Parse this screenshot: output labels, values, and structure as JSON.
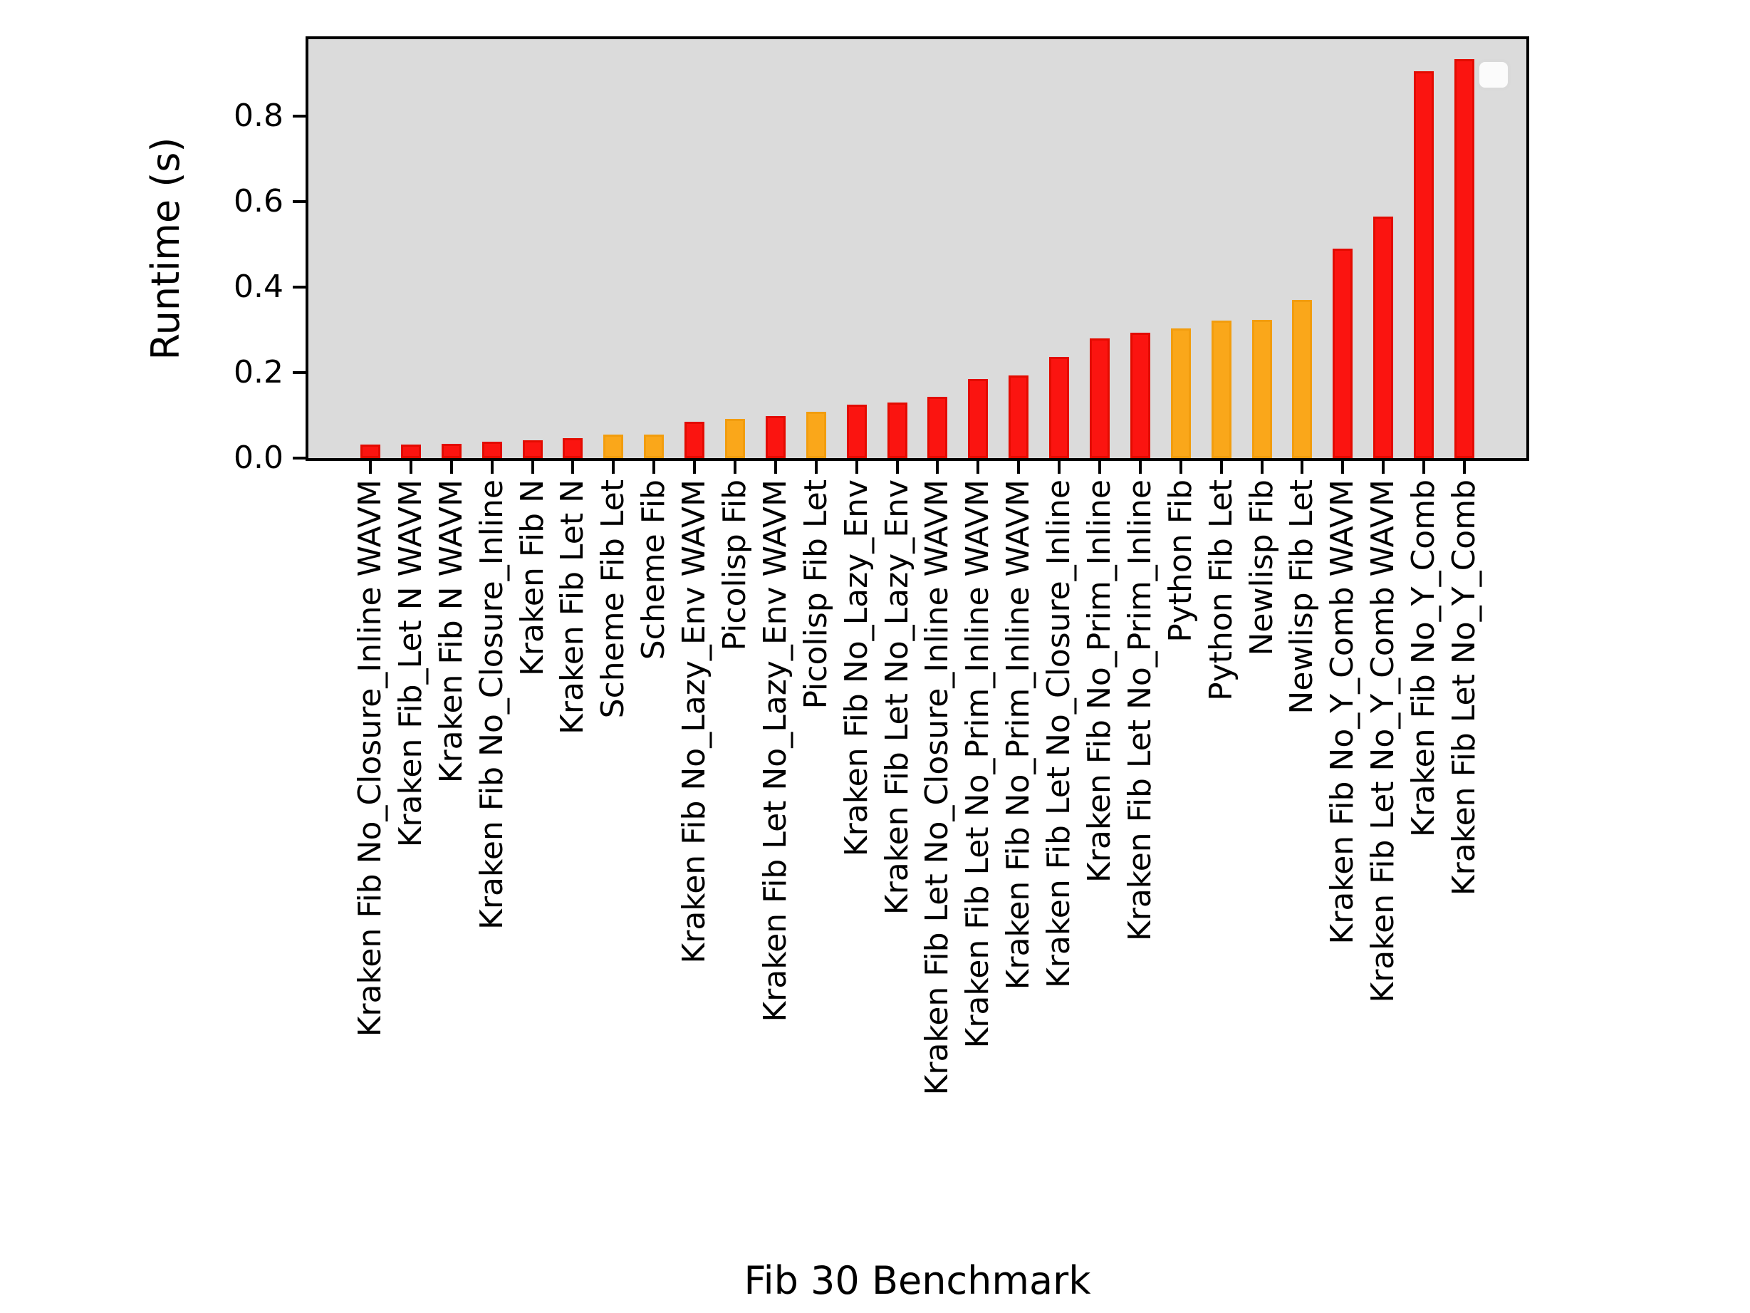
{
  "figure": {
    "xlabel": "Fib 30 Benchmark",
    "ylabel": "Runtime (s)"
  },
  "chart_data": {
    "type": "bar",
    "title": "",
    "xlabel": "Fib 30 Benchmark",
    "ylabel": "Runtime (s)",
    "ylim": [
      0,
      0.98
    ],
    "yticks": [
      0.0,
      0.2,
      0.4,
      0.6,
      0.8
    ],
    "ytick_labels": [
      "0.0",
      "0.2",
      "0.4",
      "0.6",
      "0.8"
    ],
    "grid": false,
    "legend": {
      "visible": true,
      "entries": [],
      "position": "upper right"
    },
    "plot_background": "#dbdbdb",
    "palette": {
      "red_fill": "#fb1410",
      "red_edge": "#e30b00",
      "orange_fill": "#faa71a",
      "orange_edge": "#f29d0e"
    },
    "color_meaning": {
      "red": "Kraken variants",
      "orange": "Other languages (Scheme, Picolisp, Python, Newlisp)"
    },
    "categories": [
      "Kraken Fib No_Closure_Inline WAVM",
      "Kraken Fib_Let N WAVM",
      "Kraken Fib N WAVM",
      "Kraken Fib No_Closure_Inline",
      "Kraken Fib N",
      "Kraken Fib Let N",
      "Scheme Fib Let",
      "Scheme Fib",
      "Kraken Fib No_Lazy_Env WAVM",
      "Picolisp Fib",
      "Kraken Fib Let No_Lazy_Env WAVM",
      "Picolisp Fib Let",
      "Kraken Fib No_Lazy_Env",
      "Kraken Fib Let No_Lazy_Env",
      "Kraken Fib Let No_Closure_Inline WAVM",
      "Kraken Fib Let No_Prim_Inline WAVM",
      "Kraken Fib No_Prim_Inline WAVM",
      "Kraken Fib Let No_Closure_Inline",
      "Kraken Fib No_Prim_Inline",
      "Kraken Fib Let No_Prim_Inline",
      "Python Fib",
      "Python Fib Let",
      "Newlisp Fib",
      "Newlisp Fib Let",
      "Kraken Fib No_Y_Comb WAVM",
      "Kraken Fib Let No_Y_Comb WAVM",
      "Kraken Fib No_Y_Comb",
      "Kraken Fib Let No_Y_Comb"
    ],
    "values": [
      0.031,
      0.032,
      0.034,
      0.038,
      0.042,
      0.047,
      0.055,
      0.055,
      0.085,
      0.091,
      0.098,
      0.108,
      0.125,
      0.13,
      0.143,
      0.185,
      0.193,
      0.237,
      0.28,
      0.293,
      0.303,
      0.322,
      0.323,
      0.37,
      0.49,
      0.565,
      0.905,
      0.933
    ],
    "bar_colors": [
      "red",
      "red",
      "red",
      "red",
      "red",
      "red",
      "orange",
      "orange",
      "red",
      "orange",
      "red",
      "orange",
      "red",
      "red",
      "red",
      "red",
      "red",
      "red",
      "red",
      "red",
      "orange",
      "orange",
      "orange",
      "orange",
      "red",
      "red",
      "red",
      "red"
    ]
  }
}
